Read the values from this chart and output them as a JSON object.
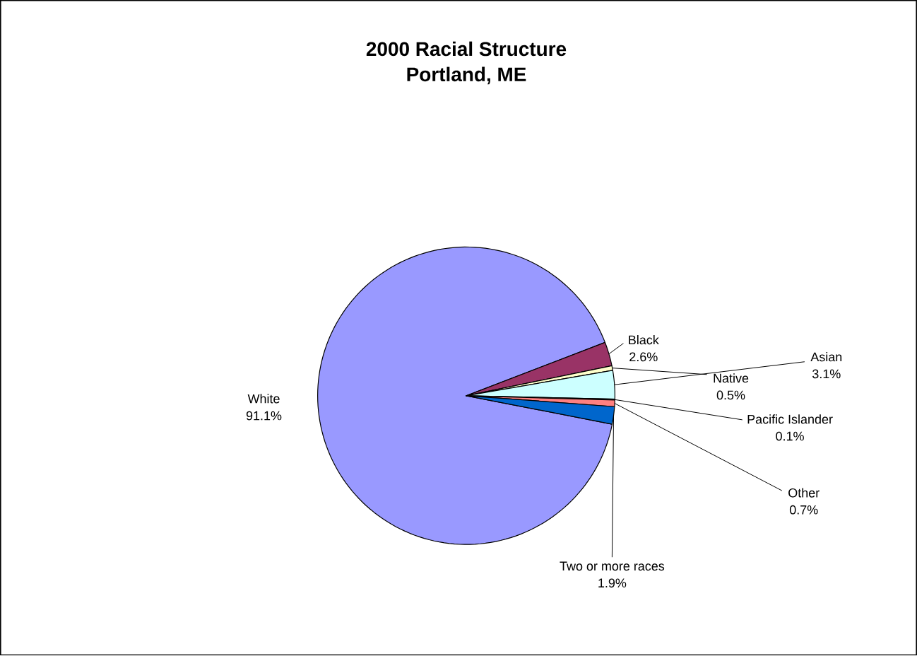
{
  "chart_data": {
    "type": "pie",
    "title": "2000 Racial Structure\nPortland, ME",
    "categories": [
      "White",
      "Black",
      "Native",
      "Asian",
      "Pacific Islander",
      "Other",
      "Two or more races"
    ],
    "values": [
      91.1,
      2.6,
      0.5,
      3.1,
      0.1,
      0.7,
      1.9
    ],
    "colors": [
      "#9999ff",
      "#993366",
      "#ffffcc",
      "#ccffff",
      "#660066",
      "#ff8080",
      "#0066cc"
    ],
    "value_labels": [
      "91.1%",
      "2.6%",
      "0.5%",
      "3.1%",
      "0.1%",
      "0.7%",
      "1.9%"
    ]
  }
}
